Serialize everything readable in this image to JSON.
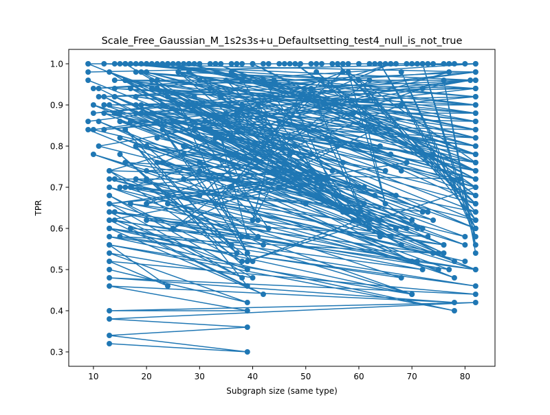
{
  "chart_data": {
    "type": "line",
    "title": "Scale_Free_Gaussian_M_1s2s3s+u_Defaultsetting_test4_null_is_not_true",
    "xlabel": "Subgraph size (same type)",
    "ylabel": "TPR",
    "xlim": [
      5.35,
      85.65
    ],
    "ylim": [
      0.265,
      1.035
    ],
    "xticks": [
      10,
      20,
      30,
      40,
      50,
      60,
      70,
      80
    ],
    "yticks": [
      0.3,
      0.4,
      0.5,
      0.6,
      0.7,
      0.8,
      0.9,
      1.0
    ],
    "xtick_labels": [
      "10",
      "20",
      "30",
      "40",
      "50",
      "60",
      "70",
      "80"
    ],
    "ytick_labels": [
      "0.3",
      "0.4",
      "0.5",
      "0.6",
      "0.7",
      "0.8",
      "0.9",
      "1.0"
    ],
    "grid": false,
    "legend": "none",
    "series_color": "#1f77b4",
    "marker": "circle",
    "x_min": 9,
    "x_max": 82,
    "y_min": 0.3,
    "y_max": 1.0,
    "series": [
      {
        "x": [
          13,
          39,
          13,
          39,
          13,
          82,
          13,
          39,
          13,
          78,
          13,
          82,
          13,
          24,
          13,
          78,
          13,
          82,
          13,
          42,
          13,
          82,
          13,
          38,
          13,
          70,
          13,
          75,
          13,
          80
        ],
        "y": [
          0.32,
          0.3,
          0.34,
          0.36,
          0.38,
          0.42,
          0.4,
          0.4,
          0.46,
          0.42,
          0.48,
          0.44,
          0.52,
          0.46,
          0.56,
          0.4,
          0.58,
          0.46,
          0.6,
          0.44,
          0.62,
          0.5,
          0.64,
          0.48,
          0.66,
          0.44,
          0.7,
          0.5,
          0.72,
          0.52
        ]
      },
      {
        "x": [
          9,
          82,
          10,
          81,
          11,
          80,
          12,
          79,
          13,
          77,
          14,
          76,
          15,
          74,
          16,
          73,
          17,
          72,
          18,
          71,
          19,
          69,
          20,
          68,
          21,
          67,
          22,
          66,
          23,
          64,
          24,
          63,
          25,
          62,
          26,
          61,
          27,
          59,
          28,
          58,
          29,
          57,
          30,
          56,
          32,
          54,
          33,
          53,
          35,
          51,
          36,
          49,
          38,
          47,
          40,
          45,
          41,
          44
        ],
        "y": [
          1.0,
          0.62,
          0.84,
          0.96,
          0.8,
          0.58,
          0.9,
          0.72,
          0.74,
          0.98,
          0.92,
          0.56,
          0.86,
          0.78,
          0.96,
          0.64,
          0.7,
          0.94,
          0.88,
          0.6,
          0.98,
          0.76,
          0.66,
          0.9,
          0.94,
          0.68,
          0.82,
          1.0,
          0.76,
          0.62,
          0.92,
          0.84,
          0.6,
          0.96,
          0.98,
          0.7,
          0.72,
          0.88,
          0.9,
          0.64,
          0.84,
          0.98,
          0.68,
          0.8,
          0.94,
          0.72,
          0.66,
          0.96,
          0.88,
          0.74,
          0.7,
          0.92,
          0.96,
          0.78,
          0.62,
          0.86,
          0.9,
          0.74
        ]
      },
      {
        "x": [
          9,
          78,
          10,
          82,
          11,
          70,
          12,
          76,
          14,
          80,
          15,
          66,
          16,
          82,
          18,
          74,
          20,
          82,
          22,
          68,
          25,
          82,
          28,
          72,
          31,
          82,
          34,
          64,
          37,
          82,
          39,
          60,
          42,
          82,
          45,
          57,
          48,
          82,
          51,
          62,
          54,
          82,
          58,
          65,
          61,
          82
        ],
        "y": [
          0.84,
          0.48,
          0.78,
          0.5,
          0.86,
          0.52,
          0.92,
          0.54,
          0.88,
          0.56,
          0.82,
          0.58,
          0.96,
          0.6,
          0.9,
          0.62,
          0.8,
          0.64,
          0.94,
          0.56,
          0.86,
          0.66,
          0.98,
          0.6,
          0.84,
          0.68,
          0.92,
          0.58,
          0.88,
          0.7,
          0.52,
          0.62,
          0.96,
          0.72,
          0.86,
          0.64,
          0.9,
          0.74,
          0.94,
          0.6,
          0.82,
          0.76,
          0.98,
          0.66,
          0.88,
          0.78
        ]
      },
      {
        "x": [
          13,
          39,
          13,
          40,
          13,
          38,
          13,
          42,
          14,
          39,
          15,
          37,
          16,
          41,
          17,
          39,
          18,
          36,
          20,
          40,
          22,
          38,
          24,
          43,
          26,
          39,
          30,
          41,
          34,
          39
        ],
        "y": [
          0.5,
          0.42,
          0.54,
          0.48,
          0.68,
          0.52,
          0.74,
          0.56,
          0.62,
          0.5,
          0.78,
          0.54,
          0.84,
          0.58,
          0.6,
          0.46,
          0.8,
          0.56,
          0.72,
          0.52,
          0.86,
          0.58,
          0.66,
          0.6,
          0.9,
          0.54,
          0.76,
          0.62,
          0.82,
          0.58
        ]
      },
      {
        "x": [
          9,
          60,
          10,
          62,
          11,
          55,
          12,
          65,
          13,
          58,
          14,
          63,
          15,
          52,
          16,
          67,
          17,
          57,
          19,
          61,
          21,
          53,
          23,
          66,
          26,
          59,
          29,
          64,
          32,
          56,
          35,
          68,
          38,
          60
        ],
        "y": [
          0.96,
          0.7,
          0.9,
          0.62,
          0.94,
          0.66,
          0.88,
          0.74,
          0.98,
          0.64,
          0.92,
          0.68,
          0.86,
          0.72,
          1.0,
          0.6,
          0.94,
          0.76,
          0.88,
          0.66,
          0.96,
          0.7,
          0.9,
          0.78,
          0.98,
          0.62,
          0.92,
          0.8,
          0.84,
          0.68,
          0.96,
          0.74,
          0.9,
          0.64
        ]
      },
      {
        "x": [
          9,
          82,
          10,
          82,
          12,
          82,
          14,
          82,
          16,
          82,
          18,
          82,
          20,
          82,
          22,
          82,
          24,
          82,
          26,
          82,
          28,
          82,
          30,
          82,
          33,
          82,
          36,
          82,
          40,
          82,
          44,
          82,
          48,
          82,
          52,
          82,
          56,
          82,
          60,
          82,
          64,
          82,
          68,
          82,
          72,
          82,
          76,
          82
        ],
        "y": [
          0.98,
          1.0,
          0.94,
          0.98,
          1.0,
          0.96,
          0.96,
          0.94,
          1.0,
          0.92,
          0.98,
          0.9,
          1.0,
          0.88,
          0.96,
          0.86,
          1.0,
          0.84,
          0.98,
          0.82,
          1.0,
          0.8,
          0.96,
          0.78,
          1.0,
          0.76,
          0.98,
          0.74,
          1.0,
          0.72,
          0.96,
          0.7,
          1.0,
          0.68,
          0.98,
          0.66,
          1.0,
          0.64,
          0.96,
          0.62,
          1.0,
          0.6,
          0.98,
          0.58,
          1.0,
          0.56,
          0.96,
          0.54
        ]
      },
      {
        "x": [
          13,
          70,
          13,
          72,
          14,
          74,
          15,
          68,
          16,
          76,
          17,
          71,
          18,
          73,
          20,
          77,
          22,
          69,
          24,
          75,
          27,
          70,
          30,
          78,
          33,
          72
        ],
        "y": [
          0.56,
          0.44,
          0.6,
          0.5,
          0.64,
          0.54,
          0.58,
          0.48,
          0.7,
          0.56,
          0.66,
          0.52,
          0.72,
          0.58,
          0.62,
          0.5,
          0.76,
          0.6,
          0.68,
          0.54,
          0.8,
          0.62,
          0.74,
          0.52,
          0.82,
          0.64
        ]
      },
      {
        "x": [
          9,
          82,
          10,
          82,
          11,
          82,
          12,
          82,
          13,
          82,
          14,
          82,
          15,
          82,
          16,
          82,
          17,
          82,
          18,
          82,
          19,
          82,
          20,
          82,
          21,
          82,
          22,
          82,
          23,
          82
        ],
        "y": [
          0.86,
          0.98,
          0.88,
          0.96,
          0.92,
          0.94,
          0.84,
          0.92,
          0.9,
          0.9,
          0.94,
          0.88,
          0.88,
          0.86,
          0.96,
          0.84,
          0.86,
          0.82,
          0.92,
          0.8,
          0.9,
          0.78,
          0.98,
          0.76,
          0.88,
          0.74,
          0.94,
          0.72,
          0.9,
          0.7
        ]
      },
      {
        "x": [
          13,
          45,
          13,
          48,
          14,
          50,
          15,
          47,
          16,
          52,
          18,
          46,
          20,
          49,
          23,
          51,
          27,
          53,
          31,
          48,
          36,
          55
        ],
        "y": [
          0.62,
          0.7,
          0.66,
          0.72,
          0.72,
          0.66,
          0.7,
          0.74,
          0.76,
          0.68,
          0.8,
          0.76,
          0.74,
          0.7,
          0.84,
          0.78,
          0.78,
          0.72,
          0.86,
          0.8,
          0.82,
          0.74
        ]
      },
      {
        "x": [
          9,
          14,
          15,
          16,
          17,
          18,
          19,
          20,
          21,
          22,
          23,
          24,
          25,
          26,
          27,
          28,
          29,
          30,
          32,
          33,
          34,
          36,
          37,
          38,
          40,
          42,
          43,
          45,
          46,
          47,
          49,
          51,
          52,
          53,
          55,
          57,
          58,
          60,
          62,
          63,
          65,
          66,
          67,
          69,
          70,
          71,
          72,
          73,
          74,
          76,
          77,
          78,
          80,
          82
        ],
        "y": [
          1.0,
          1.0,
          1.0,
          1.0,
          1.0,
          1.0,
          1.0,
          1.0,
          1.0,
          1.0,
          1.0,
          1.0,
          1.0,
          1.0,
          1.0,
          1.0,
          1.0,
          1.0,
          1.0,
          1.0,
          1.0,
          1.0,
          1.0,
          1.0,
          1.0,
          1.0,
          1.0,
          1.0,
          1.0,
          1.0,
          1.0,
          1.0,
          1.0,
          1.0,
          1.0,
          1.0,
          1.0,
          1.0,
          1.0,
          1.0,
          1.0,
          1.0,
          1.0,
          1.0,
          1.0,
          1.0,
          1.0,
          1.0,
          1.0,
          1.0,
          1.0,
          1.0,
          1.0,
          1.0
        ]
      }
    ]
  }
}
